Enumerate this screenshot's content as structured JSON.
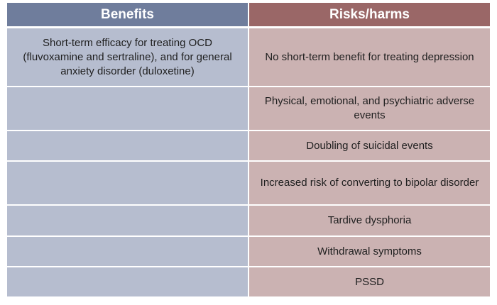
{
  "colors": {
    "benefits_header": "#6f7d9c",
    "risks_header": "#9a6767",
    "benefits_cell": "#b6bdcf",
    "risks_cell": "#cbb2b2"
  },
  "table": {
    "headers": {
      "benefits": "Benefits",
      "risks": "Risks/harms"
    },
    "rows": [
      {
        "benefit": "Short-term efficacy for treating OCD (fluvoxamine and sertraline), and for general anxiety disorder (duloxetine)",
        "risk": "No short-term benefit for treating depression"
      },
      {
        "benefit": "",
        "risk": "Physical, emotional, and psychiatric adverse events"
      },
      {
        "benefit": "",
        "risk": "Doubling of suicidal events"
      },
      {
        "benefit": "",
        "risk": "Increased risk of converting to bipolar disorder"
      },
      {
        "benefit": "",
        "risk": "Tardive dysphoria"
      },
      {
        "benefit": "",
        "risk": "Withdrawal symptoms"
      },
      {
        "benefit": "",
        "risk": "PSSD"
      }
    ]
  }
}
